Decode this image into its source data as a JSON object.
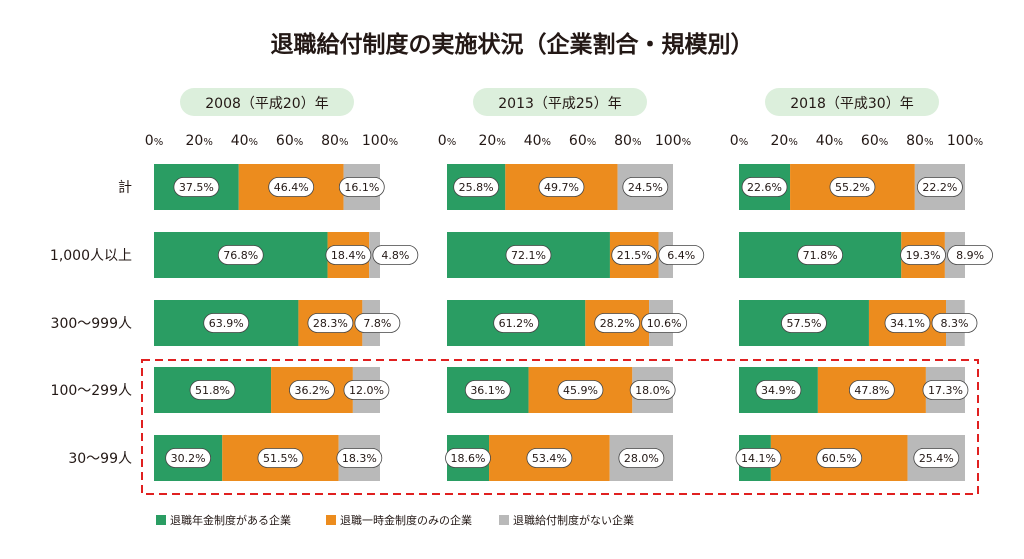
{
  "chart_data": {
    "type": "bar",
    "stacked": true,
    "orientation": "horizontal",
    "title": "退職給付制度の実施状況（企業割合・規模別）",
    "percent_unit": "%",
    "axis_ticks": [
      "0",
      "20",
      "40",
      "60",
      "80",
      "100"
    ],
    "categories": [
      "計",
      "1,000人以上",
      "300～999人",
      "100～299人",
      "30～99人"
    ],
    "highlighted_categories": [
      "100～299人",
      "30～99人"
    ],
    "series_names": [
      "退職年金制度がある企業",
      "退職一時金制度のみの企業",
      "退職給付制度がない企業"
    ],
    "colors": [
      "#2a9d63",
      "#ec8c1e",
      "#b9b9b9"
    ],
    "highlight_color": "#e02020",
    "panel_label_bg": "#dcefdc",
    "xlim": [
      0,
      100
    ],
    "panels": [
      {
        "label": "2008（平成20）年",
        "values": [
          [
            37.5,
            46.4,
            16.1
          ],
          [
            76.8,
            18.4,
            4.8
          ],
          [
            63.9,
            28.3,
            7.8
          ],
          [
            51.8,
            36.2,
            12.0
          ],
          [
            30.2,
            51.5,
            18.3
          ]
        ],
        "labels": [
          [
            "37.5%",
            "46.4%",
            "16.1%"
          ],
          [
            "76.8%",
            "18.4%",
            "4.8%"
          ],
          [
            "63.9%",
            "28.3%",
            "7.8%"
          ],
          [
            "51.8%",
            "36.2%",
            "12.0%"
          ],
          [
            "30.2%",
            "51.5%",
            "18.3%"
          ]
        ]
      },
      {
        "label": "2013（平成25）年",
        "values": [
          [
            25.8,
            49.7,
            24.5
          ],
          [
            72.1,
            21.5,
            6.4
          ],
          [
            61.2,
            28.2,
            10.6
          ],
          [
            36.1,
            45.9,
            18.0
          ],
          [
            18.6,
            53.4,
            28.0
          ]
        ],
        "labels": [
          [
            "25.8%",
            "49.7%",
            "24.5%"
          ],
          [
            "72.1%",
            "21.5%",
            "6.4%"
          ],
          [
            "61.2%",
            "28.2%",
            "10.6%"
          ],
          [
            "36.1%",
            "45.9%",
            "18.0%"
          ],
          [
            "18.6%",
            "53.4%",
            "28.0%"
          ]
        ]
      },
      {
        "label": "2018（平成30）年",
        "values": [
          [
            22.6,
            55.2,
            22.2
          ],
          [
            71.8,
            19.3,
            8.9
          ],
          [
            57.5,
            34.1,
            8.3
          ],
          [
            34.9,
            47.8,
            17.3
          ],
          [
            14.1,
            60.5,
            25.4
          ]
        ],
        "labels": [
          [
            "22.6%",
            "55.2%",
            "22.2%"
          ],
          [
            "71.8%",
            "19.3%",
            "8.9%"
          ],
          [
            "57.5%",
            "34.1%",
            "8.3%"
          ],
          [
            "34.9%",
            "47.8%",
            "17.3%"
          ],
          [
            "14.1%",
            "60.5%",
            "25.4%"
          ]
        ]
      }
    ]
  }
}
